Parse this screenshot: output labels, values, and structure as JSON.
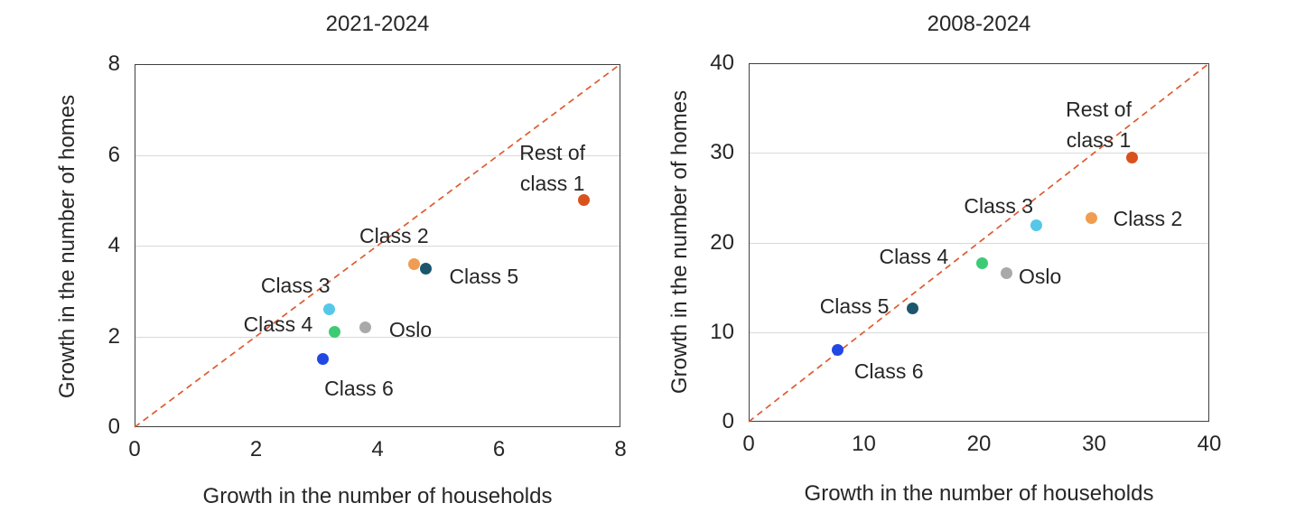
{
  "figure": {
    "background_color": "#ffffff",
    "text_color": "#262626",
    "gridline_color": "#D9D9D9",
    "plot_border_color": "#404040",
    "reference_line_color": "#DD5B30"
  },
  "chart_data": [
    {
      "type": "scatter",
      "title": "2021-2024",
      "xlabel": "Growth in the number of households",
      "ylabel": "Growth in the number of homes",
      "xlim": [
        0,
        8
      ],
      "ylim": [
        0,
        8
      ],
      "xticks": [
        0,
        2,
        4,
        6,
        8
      ],
      "xtick_labels": [
        "0",
        "2",
        "4",
        "6",
        "8"
      ],
      "yticks": [
        0,
        2,
        4,
        6,
        8
      ],
      "ytick_labels": [
        "0",
        "2",
        "4",
        "6",
        "8"
      ],
      "grid": "horizontal",
      "legend": "none",
      "diagonal_reference_line": {
        "from": [
          0,
          0
        ],
        "to": [
          8,
          8
        ],
        "style": "dashed",
        "color": "#DD5B30"
      },
      "points": [
        {
          "name": "rest-of-class-1",
          "label": "Rest of\nclass 1",
          "x": 7.4,
          "y": 5.0,
          "color": "#D9521D",
          "label_offset": [
            -35,
            -36
          ]
        },
        {
          "name": "class-2",
          "label": "Class 2",
          "x": 4.6,
          "y": 3.6,
          "color": "#F09C51",
          "label_offset": [
            -22,
            -31
          ]
        },
        {
          "name": "class-3",
          "label": "Class 3",
          "x": 3.2,
          "y": 2.6,
          "color": "#55C7E9",
          "label_offset": [
            -37,
            -26
          ]
        },
        {
          "name": "class-4",
          "label": "Class 4",
          "x": 3.3,
          "y": 2.1,
          "color": "#3CCB74",
          "label_offset": [
            -63,
            -8
          ]
        },
        {
          "name": "class-5",
          "label": "Class 5",
          "x": 4.8,
          "y": 3.5,
          "color": "#1C566C",
          "label_offset": [
            64,
            9
          ]
        },
        {
          "name": "class-6",
          "label": "Class 6",
          "x": 3.1,
          "y": 1.5,
          "color": "#2148E3",
          "label_offset": [
            40,
            32
          ]
        },
        {
          "name": "oslo",
          "label": "Oslo",
          "x": 3.8,
          "y": 2.2,
          "color": "#A9A9A9",
          "label_offset": [
            50,
            3
          ]
        }
      ]
    },
    {
      "type": "scatter",
      "title": "2008-2024",
      "xlabel": "Growth in the number of households",
      "ylabel": "Growth in the number of homes",
      "xlim": [
        0,
        40
      ],
      "ylim": [
        0,
        40
      ],
      "xticks": [
        0,
        10,
        20,
        30,
        40
      ],
      "xtick_labels": [
        "0",
        "10",
        "20",
        "30",
        "40"
      ],
      "yticks": [
        0,
        10,
        20,
        30,
        40
      ],
      "ytick_labels": [
        "0",
        "10",
        "20",
        "30",
        "40"
      ],
      "grid": "horizontal",
      "legend": "none",
      "diagonal_reference_line": {
        "from": [
          0,
          0
        ],
        "to": [
          40,
          40
        ],
        "style": "dashed",
        "color": "#DD5B30"
      },
      "points": [
        {
          "name": "rest-of-class-1",
          "label": "Rest of\nclass 1",
          "x": 33.3,
          "y": 29.5,
          "color": "#D9521D",
          "label_offset": [
            -37,
            -36
          ]
        },
        {
          "name": "class-2",
          "label": "Class 2",
          "x": 29.8,
          "y": 22.7,
          "color": "#F09C51",
          "label_offset": [
            62,
            0
          ]
        },
        {
          "name": "class-3",
          "label": "Class 3",
          "x": 25.0,
          "y": 21.9,
          "color": "#55C7E9",
          "label_offset": [
            -42,
            -22
          ]
        },
        {
          "name": "class-4",
          "label": "Class 4",
          "x": 20.3,
          "y": 17.7,
          "color": "#3CCB74",
          "label_offset": [
            -76,
            -7
          ]
        },
        {
          "name": "class-5",
          "label": "Class 5",
          "x": 14.2,
          "y": 12.6,
          "color": "#1C566C",
          "label_offset": [
            -64,
            -3
          ]
        },
        {
          "name": "class-6",
          "label": "Class 6",
          "x": 7.7,
          "y": 8.0,
          "color": "#2148E3",
          "label_offset": [
            57,
            23
          ]
        },
        {
          "name": "oslo",
          "label": "Oslo",
          "x": 22.4,
          "y": 16.6,
          "color": "#A9A9A9",
          "label_offset": [
            37,
            4
          ]
        }
      ]
    }
  ]
}
